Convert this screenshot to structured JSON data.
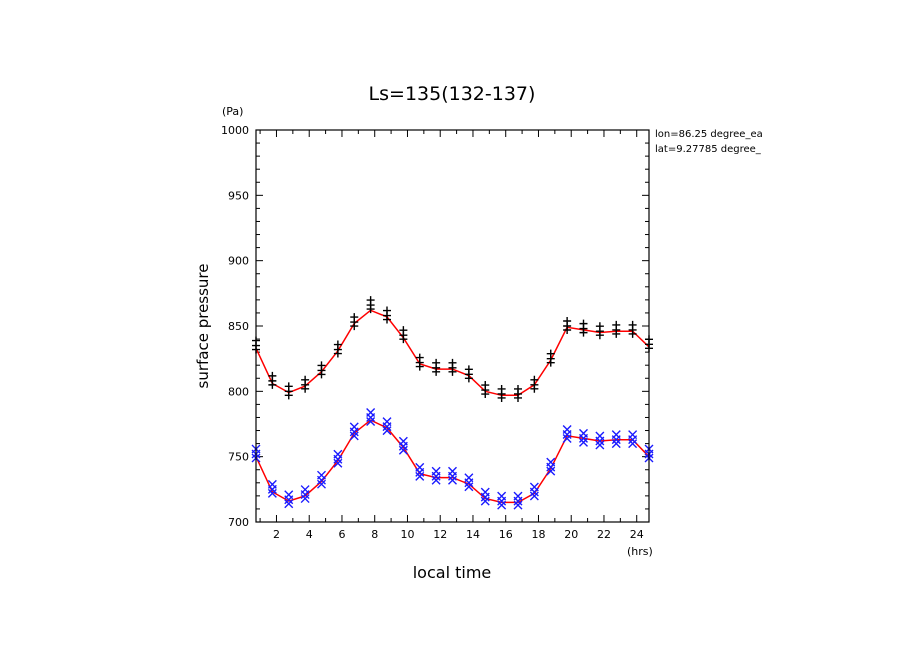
{
  "chart_data": {
    "type": "scatter",
    "title": "Ls=135(132-137)",
    "xlabel": "local time",
    "ylabel": "surface pressure",
    "x_unit": "(hrs)",
    "y_unit": "(Pa)",
    "xlim": [
      0.75,
      24.75
    ],
    "ylim": [
      700,
      1000
    ],
    "x_ticks": [
      2,
      4,
      6,
      8,
      10,
      12,
      14,
      16,
      18,
      20,
      22,
      24
    ],
    "y_ticks": [
      700,
      750,
      800,
      850,
      900,
      950,
      1000
    ],
    "annotations": [
      "lon=86.25 degree_ea",
      "lat=9.27785 degree_"
    ],
    "colors": {
      "upper_markers": "#000000",
      "lower_markers": "#1a1aff",
      "fit_line": "#ff0000"
    },
    "series": [
      {
        "marker": "plus",
        "color": "#000000",
        "x": [
          0.75,
          1.75,
          2.75,
          3.75,
          4.75,
          5.75,
          6.75,
          7.75,
          8.75,
          9.75,
          10.75,
          11.75,
          12.75,
          13.75,
          14.75,
          15.75,
          16.75,
          17.75,
          18.75,
          19.75,
          20.75,
          21.75,
          22.75,
          23.75,
          24.75
        ],
        "y": [
          835,
          808,
          800,
          805,
          816,
          832,
          853,
          866,
          858,
          843,
          822,
          818,
          818,
          813,
          801,
          798,
          798,
          805,
          825,
          850,
          848,
          846,
          847,
          847,
          836
        ]
      },
      {
        "marker": "cross",
        "color": "#1a1aff",
        "x": [
          0.75,
          1.75,
          2.75,
          3.75,
          4.75,
          5.75,
          6.75,
          7.75,
          8.75,
          9.75,
          10.75,
          11.75,
          12.75,
          13.75,
          14.75,
          15.75,
          16.75,
          17.75,
          18.75,
          19.75,
          20.75,
          21.75,
          22.75,
          23.75,
          24.75
        ],
        "y": [
          752,
          725,
          717,
          721,
          732,
          748,
          769,
          780,
          773,
          758,
          738,
          735,
          735,
          730,
          719,
          716,
          716,
          723,
          742,
          767,
          764,
          762,
          763,
          763,
          752
        ]
      }
    ],
    "fit_lines": [
      {
        "color": "#ff0000",
        "x": [
          0.75,
          1.75,
          2.75,
          3.75,
          4.75,
          5.75,
          6.75,
          7.75,
          8.75,
          9.75,
          10.75,
          11.75,
          12.75,
          13.75,
          14.75,
          15.75,
          16.75,
          17.75,
          18.75,
          19.75,
          20.75,
          21.75,
          22.75,
          23.75,
          24.75
        ],
        "y": [
          833,
          806,
          799,
          804,
          815,
          831,
          852,
          862,
          857,
          841,
          821,
          817,
          817,
          812,
          800,
          797,
          797,
          805,
          824,
          849,
          847,
          845,
          846,
          846,
          834
        ]
      },
      {
        "color": "#ff0000",
        "x": [
          0.75,
          1.75,
          2.75,
          3.75,
          4.75,
          5.75,
          6.75,
          7.75,
          8.75,
          9.75,
          10.75,
          11.75,
          12.75,
          13.75,
          14.75,
          15.75,
          16.75,
          17.75,
          18.75,
          19.75,
          20.75,
          21.75,
          22.75,
          23.75,
          24.75
        ],
        "y": [
          750,
          723,
          716,
          720,
          731,
          747,
          768,
          778,
          772,
          757,
          737,
          734,
          734,
          729,
          718,
          715,
          715,
          722,
          741,
          766,
          764,
          762,
          763,
          763,
          750
        ]
      }
    ]
  }
}
